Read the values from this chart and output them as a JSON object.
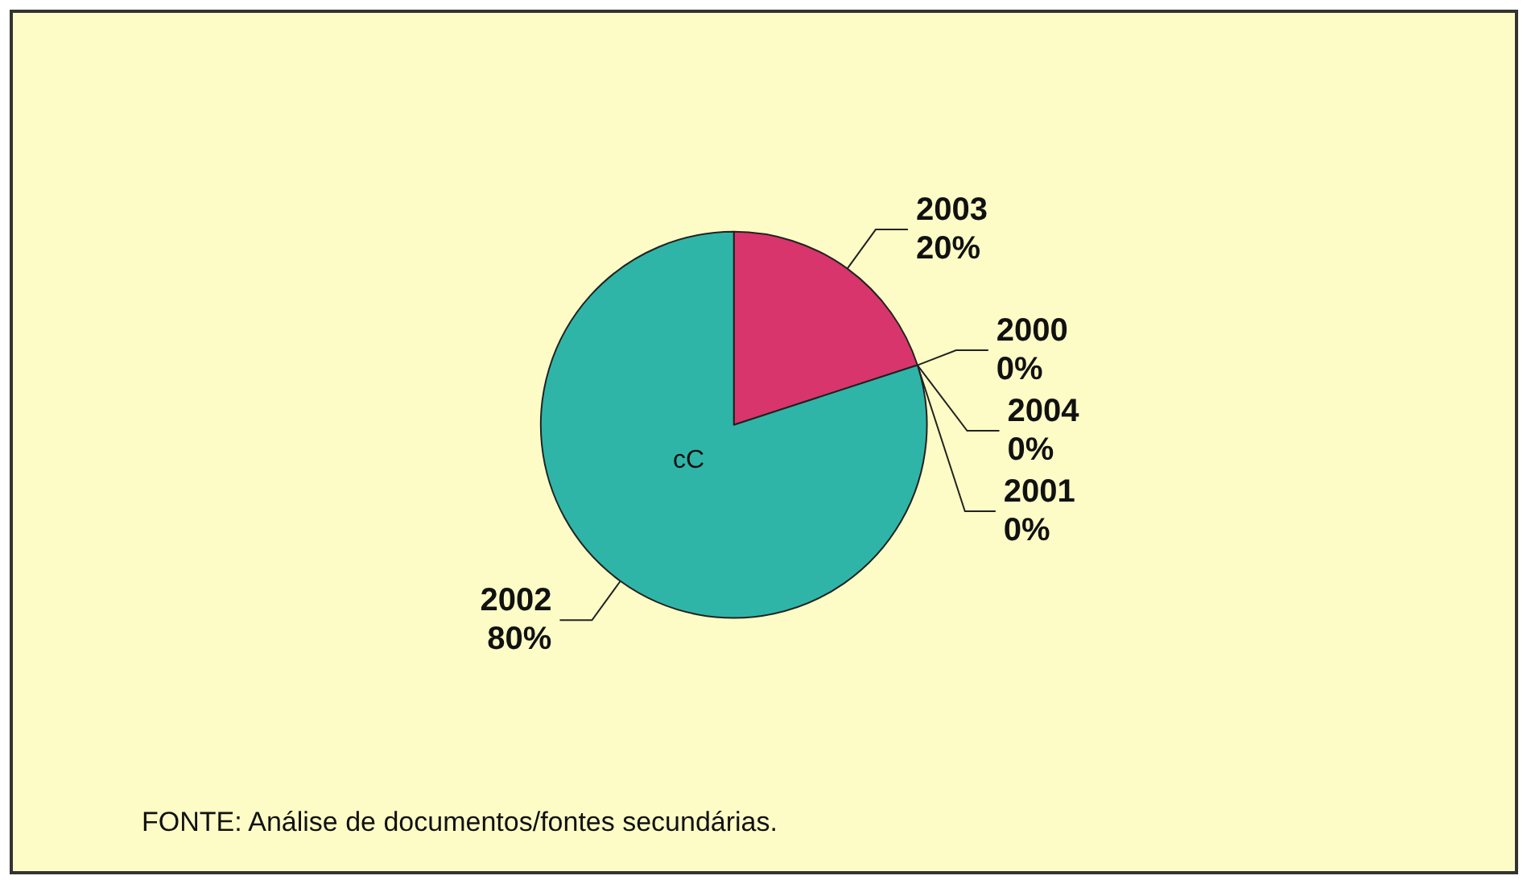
{
  "chart_data": {
    "type": "pie",
    "categories": [
      "2003",
      "2000",
      "2004",
      "2001",
      "2002"
    ],
    "values": [
      20,
      0,
      0,
      0,
      80
    ],
    "value_labels": [
      "20%",
      "0%",
      "0%",
      "0%",
      "80%"
    ],
    "colors": [
      "#d8356c",
      "#b9a86a",
      "#c0306a",
      "#2a8c80",
      "#2fb5a8"
    ],
    "annotations": [
      "cC",
      "FONTE: Análise de documentos/fontes secundárias."
    ]
  }
}
